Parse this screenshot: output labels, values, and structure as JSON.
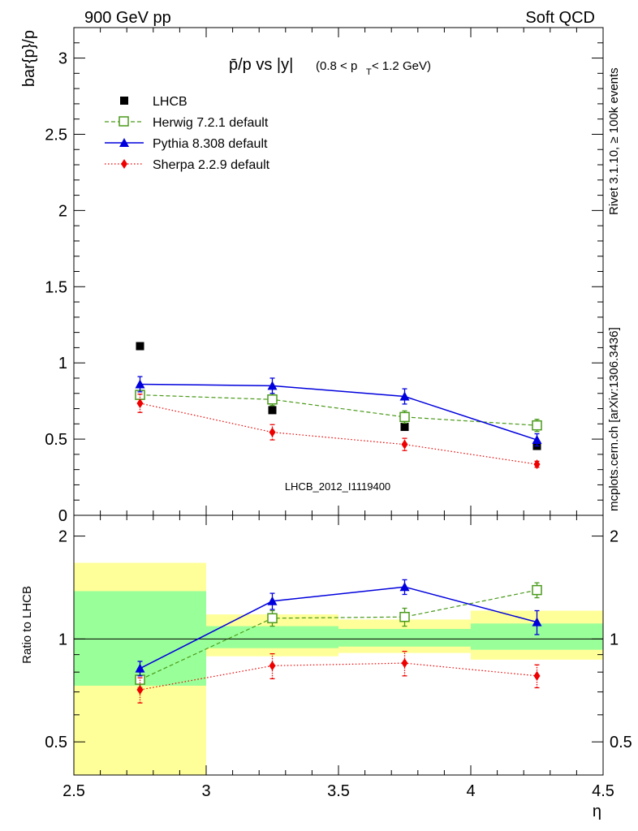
{
  "header": {
    "left": "900 GeV pp",
    "right": "Soft QCD"
  },
  "side_labels": {
    "rivet": "Rivet 3.1.10, ≥ 100k events",
    "mcplots": "mcplots.cern.ch [arXiv:1306.3436]"
  },
  "watermark": "LHCB_2012_I1119400",
  "colors": {
    "lhcb": "#000000",
    "herwig": "#4a9a1a",
    "pythia": "#0000dd",
    "sherpa": "#ee0000",
    "band_inner": "#99ff99",
    "band_outer": "#ffff99"
  },
  "chart_data": [
    {
      "type": "scatter",
      "title_main": "p̄/p vs |y|",
      "title_sub": "(0.8 < p",
      "title_sub_T": "T",
      "title_sub_end": " < 1.2 GeV)",
      "ylabel": "bar{p}/p",
      "xlim": [
        2.5,
        4.5
      ],
      "ylim": [
        0,
        3.2
      ],
      "yticks": [
        0,
        0.5,
        1,
        1.5,
        2,
        2.5,
        3
      ],
      "ytick_labels": [
        "0",
        "0.5",
        "1",
        "1.5",
        "2",
        "2.5",
        "3"
      ],
      "legend_position": "top-left",
      "series": [
        {
          "name": "LHCB",
          "key": "lhcb",
          "style": "marker",
          "x": [
            2.75,
            3.25,
            3.75,
            4.25
          ],
          "y": [
            1.11,
            0.69,
            0.58,
            0.455
          ],
          "err": [
            0,
            0,
            0,
            0
          ]
        },
        {
          "name": "Herwig 7.2.1 default",
          "key": "herwig",
          "style": "dashed",
          "x": [
            2.75,
            3.25,
            3.75,
            4.25
          ],
          "y": [
            0.79,
            0.76,
            0.645,
            0.59
          ],
          "err": [
            0.03,
            0.04,
            0.04,
            0.04
          ]
        },
        {
          "name": "Pythia 8.308 default",
          "key": "pythia",
          "style": "solid",
          "x": [
            2.75,
            3.25,
            3.75,
            4.25
          ],
          "y": [
            0.86,
            0.85,
            0.78,
            0.495
          ],
          "err": [
            0.05,
            0.05,
            0.05,
            0.04
          ]
        },
        {
          "name": "Sherpa 2.2.9 default",
          "key": "sherpa",
          "style": "dotted",
          "x": [
            2.75,
            3.25,
            3.75,
            4.25
          ],
          "y": [
            0.735,
            0.545,
            0.465,
            0.335
          ],
          "err": [
            0.06,
            0.05,
            0.04,
            0.02
          ]
        }
      ]
    },
    {
      "type": "scatter",
      "ylabel": "Ratio to LHCB",
      "xlabel": "η",
      "xlim": [
        2.5,
        4.5
      ],
      "ylog": true,
      "ylim": [
        0.4,
        2.3
      ],
      "xticks": [
        2.5,
        3,
        3.5,
        4,
        4.5
      ],
      "xtick_labels": [
        "2.5",
        "3",
        "3.5",
        "4",
        "4.5"
      ],
      "yticks": [
        0.5,
        1,
        2
      ],
      "ytick_labels": [
        "0.5",
        "1",
        "2"
      ],
      "bands": [
        {
          "x0": 2.5,
          "x1": 3.0,
          "outer": [
            0.38,
            1.67
          ],
          "inner": [
            0.73,
            1.38
          ]
        },
        {
          "x0": 3.0,
          "x1": 3.5,
          "outer": [
            0.89,
            1.18
          ],
          "inner": [
            0.94,
            1.09
          ]
        },
        {
          "x0": 3.5,
          "x1": 4.0,
          "outer": [
            0.91,
            1.14
          ],
          "inner": [
            0.95,
            1.07
          ]
        },
        {
          "x0": 4.0,
          "x1": 4.5,
          "outer": [
            0.87,
            1.21
          ],
          "inner": [
            0.93,
            1.11
          ]
        }
      ],
      "series": [
        {
          "name": "Herwig 7.2.1 default",
          "key": "herwig",
          "style": "dashed",
          "x": [
            2.75,
            3.25,
            3.75,
            4.25
          ],
          "y": [
            0.76,
            1.15,
            1.16,
            1.39
          ],
          "err": [
            0.04,
            0.06,
            0.07,
            0.07
          ]
        },
        {
          "name": "Pythia 8.308 default",
          "key": "pythia",
          "style": "solid",
          "x": [
            2.75,
            3.25,
            3.75,
            4.25
          ],
          "y": [
            0.82,
            1.29,
            1.42,
            1.12
          ],
          "err": [
            0.04,
            0.07,
            0.07,
            0.09
          ]
        },
        {
          "name": "Sherpa 2.2.9 default",
          "key": "sherpa",
          "style": "dotted",
          "x": [
            2.75,
            3.25,
            3.75,
            4.25
          ],
          "y": [
            0.71,
            0.835,
            0.85,
            0.78
          ],
          "err": [
            0.06,
            0.07,
            0.07,
            0.06
          ]
        }
      ]
    }
  ]
}
